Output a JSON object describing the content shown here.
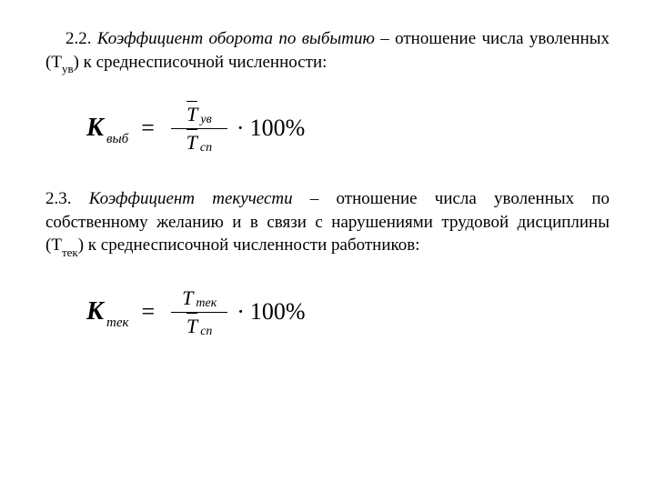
{
  "section22": {
    "number": "2.2.",
    "title": "Коэффициент оборота по выбытию",
    "dash": " – ",
    "text1": "отношение числа уволенных (Т",
    "sub1": "ув",
    "text2": ") к среднесписочной численности:"
  },
  "formula1": {
    "k_letter": "К",
    "k_sub": "выб",
    "equals": "=",
    "num_T": "Т",
    "num_sub": "ув",
    "den_T": "Т",
    "den_sub": "сп",
    "dot": "·",
    "mult": "100%"
  },
  "section23": {
    "number": "2.3.",
    "title": "Коэффициент текучести",
    "dash": " – ",
    "text1": "отношение числа уволенных по собственному желанию и в связи с нарушениями трудовой дисциплины (Т",
    "sub1": "тек",
    "text2": ") к среднесписочной численности работников:"
  },
  "formula2": {
    "k_letter": "К",
    "k_sub": "тек",
    "equals": "=",
    "num_T": "Т",
    "num_sub": "тек",
    "den_T": "Т",
    "den_sub": "сп",
    "dot": "·",
    "mult": "100%"
  },
  "colors": {
    "text": "#000000",
    "background": "#ffffff"
  },
  "fonts": {
    "body_size": 19,
    "formula_size": 26
  }
}
